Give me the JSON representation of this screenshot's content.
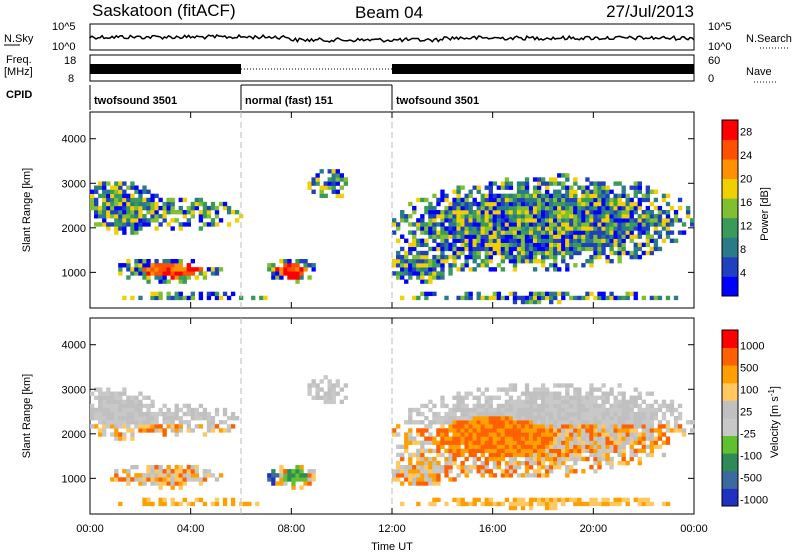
{
  "header": {
    "station": "Saskatoon (fitACF)",
    "beam": "Beam 04",
    "date": "27/Jul/2013"
  },
  "strips": {
    "nsky_label": "N.Sky",
    "nsearch_label": "N.Search",
    "nsky_ticks": [
      "10^5",
      "10^0"
    ],
    "nsearch_ticks": [
      "10^5",
      "10^0"
    ],
    "freq_label_line1": "Freq.",
    "freq_label_line2": "[MHz]",
    "freq_ticks": [
      "18",
      "8"
    ],
    "nave_label": "Nave",
    "nave_ticks": [
      "60",
      "0"
    ],
    "cpid_label": "CPID",
    "cpid_segments": [
      {
        "label": "twofsound 3501",
        "start": 0,
        "end": 6
      },
      {
        "label": "normal (fast) 151",
        "start": 6,
        "end": 12
      },
      {
        "label": "twofsound 3501",
        "start": 12,
        "end": 24
      }
    ]
  },
  "colors": {
    "power": [
      "#0000ff",
      "#2040c0",
      "#2a7a8a",
      "#3a9a5a",
      "#80c030",
      "#f0d000",
      "#ff9000",
      "#ff5000",
      "#ff0000"
    ],
    "velocity": [
      "#ff0000",
      "#ff6000",
      "#ffa000",
      "#ffc860",
      "#c0c0c0",
      "#c8c8c8",
      "#60c030",
      "#2e8b57",
      "#3a6aa0",
      "#2030c0"
    ]
  },
  "chart_data": [
    {
      "type": "heatmap",
      "panel": "power",
      "ylabel": "Slant Range [km]",
      "yticks": [
        1000,
        2000,
        3000,
        4000
      ],
      "ylim": [
        200,
        4600
      ],
      "xlim": [
        0,
        24
      ],
      "colorbar_label": "Power [dB]",
      "colorbar_ticks": [
        4,
        8,
        12,
        16,
        20,
        24,
        28
      ],
      "colorbar_range": [
        0,
        30
      ]
    },
    {
      "type": "heatmap",
      "panel": "velocity",
      "ylabel": "Slant Range [km]",
      "yticks": [
        1000,
        2000,
        3000,
        4000
      ],
      "ylim": [
        200,
        4600
      ],
      "xlim": [
        0,
        24
      ],
      "colorbar_label": "Velocity [m s",
      "colorbar_label_sup": "-1",
      "colorbar_label_end": "]",
      "colorbar_ticks": [
        "1000",
        "500",
        "100",
        "25",
        "-25",
        "-100",
        "-500",
        "-1000"
      ]
    }
  ],
  "xaxis": {
    "ticks": [
      "00:00",
      "04:00",
      "08:00",
      "12:00",
      "16:00",
      "20:00",
      "00:00"
    ],
    "label": "Time UT"
  }
}
